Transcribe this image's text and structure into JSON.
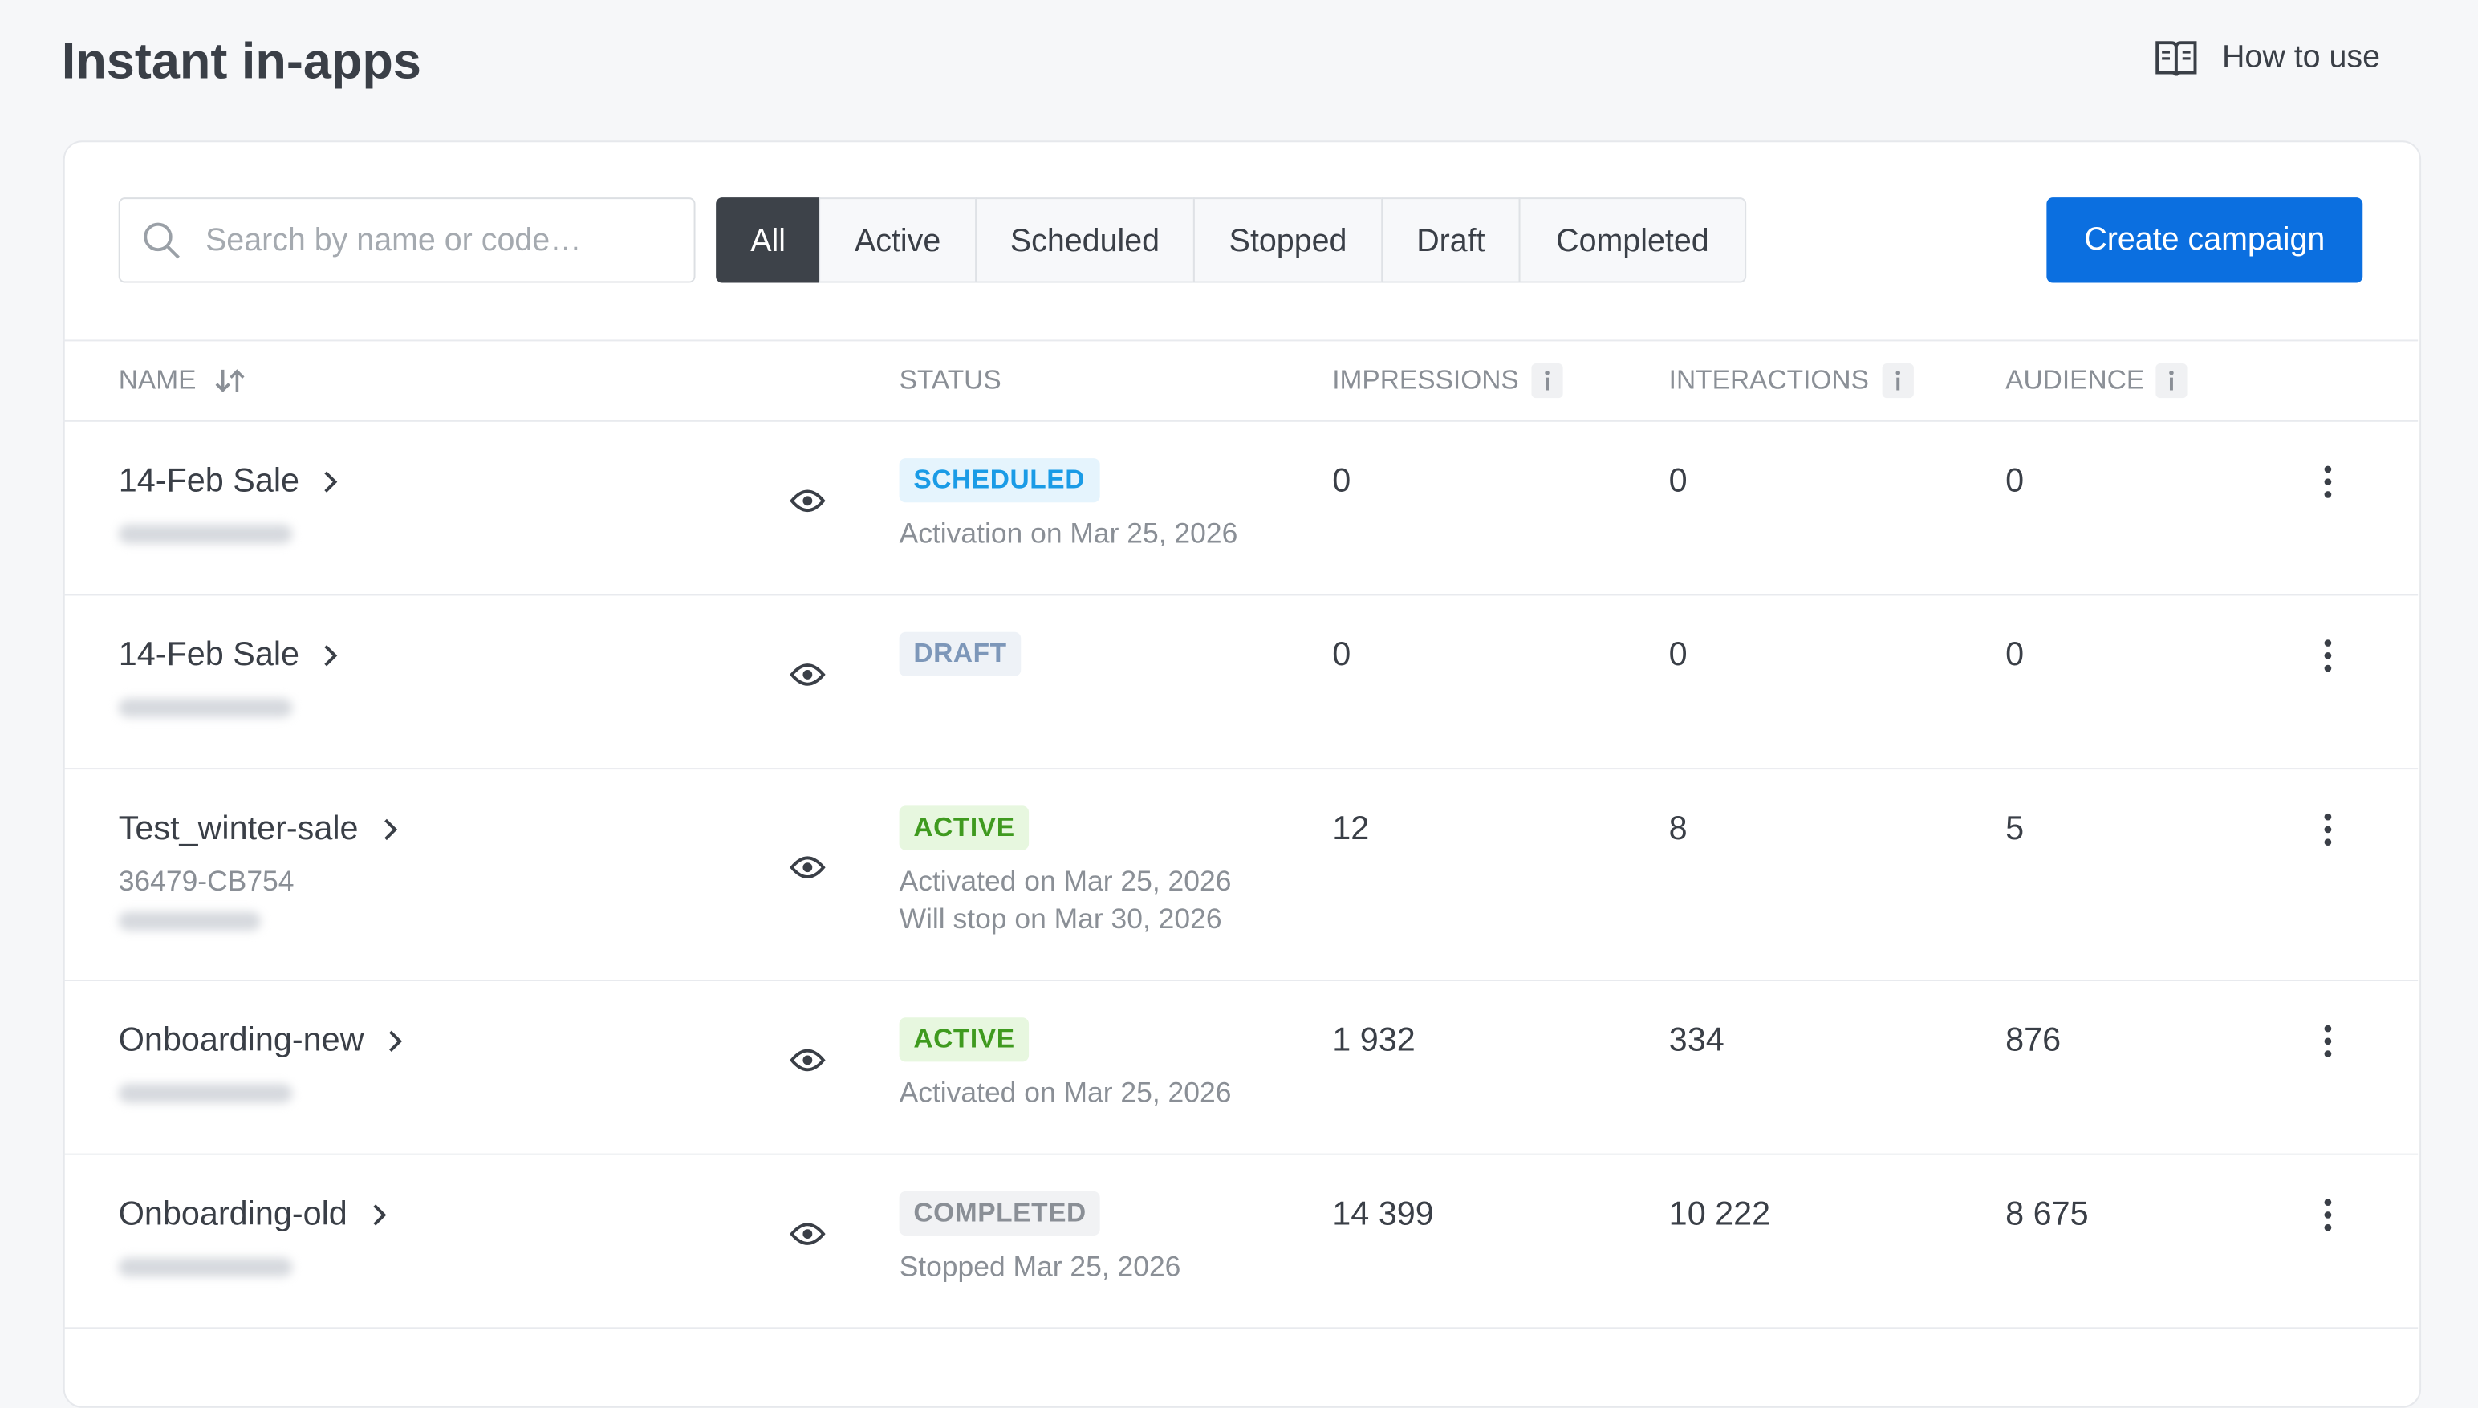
{
  "header": {
    "title": "Instant in-apps",
    "help_link": "How to use"
  },
  "toolbar": {
    "search_placeholder": "Search by name or code…",
    "tabs": [
      "All",
      "Active",
      "Scheduled",
      "Stopped",
      "Draft",
      "Completed"
    ],
    "selected_tab": 0,
    "create_button": "Create campaign"
  },
  "table": {
    "columns": [
      "NAME",
      "STATUS",
      "IMPRESSIONS",
      "INTERACTIONS",
      "AUDIENCE"
    ],
    "rows": [
      {
        "name": "14-Feb Sale",
        "status": "SCHEDULED",
        "status_color": "#1a9be6",
        "status_bg": "#e5f4fd",
        "notes": [
          "Activation on Mar 25, 2026"
        ],
        "impressions": "0",
        "interactions": "0",
        "audience": "0"
      },
      {
        "name": "14-Feb Sale",
        "status": "DRAFT",
        "status_color": "#7d97b9",
        "status_bg": "#eef2f7",
        "notes": [],
        "impressions": "0",
        "interactions": "0",
        "audience": "0"
      },
      {
        "name": "Test_winter-sale",
        "code": "36479-CB754",
        "status": "ACTIVE",
        "status_color": "#3f9a1f",
        "status_bg": "#e7f7df",
        "notes": [
          "Activated on Mar 25, 2026",
          "Will stop on Mar 30, 2026"
        ],
        "impressions": "12",
        "interactions": "8",
        "audience": "5"
      },
      {
        "name": "Onboarding-new",
        "status": "ACTIVE",
        "status_color": "#3f9a1f",
        "status_bg": "#e7f7df",
        "notes": [
          "Activated on Mar 25, 2026"
        ],
        "impressions": "1 932",
        "interactions": "334",
        "audience": "876"
      },
      {
        "name": "Onboarding-old",
        "status": "COMPLETED",
        "status_color": "#8a8f96",
        "status_bg": "#f1f2f4",
        "notes": [
          "Stopped Mar 25, 2026"
        ],
        "impressions": "14 399",
        "interactions": "10 222",
        "audience": "8 675"
      }
    ]
  }
}
